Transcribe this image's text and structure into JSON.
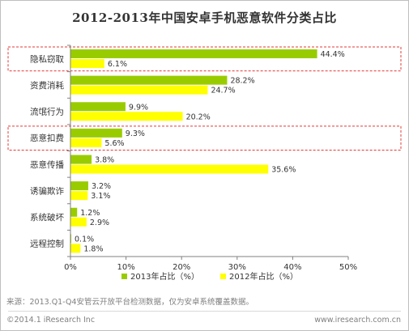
{
  "title": "2012-2013年中国安卓手机恶意软件分类占比",
  "colors": {
    "series_2013": "#99cc00",
    "series_2012": "#ffff00",
    "highlight_box": "#e53935",
    "axis": "#808080"
  },
  "chart_data": {
    "type": "bar",
    "orientation": "horizontal",
    "title": "2012-2013年中国安卓手机恶意软件分类占比",
    "categories": [
      "隐私窃取",
      "资费消耗",
      "流氓行为",
      "恶意扣费",
      "恶意传播",
      "诱骗欺诈",
      "系统破坏",
      "远程控制"
    ],
    "series": [
      {
        "name": "2013年占比（%）",
        "values": [
          44.4,
          28.2,
          9.9,
          9.3,
          3.8,
          3.2,
          1.2,
          0.1
        ],
        "labels": [
          "44.4%",
          "28.2%",
          "9.9%",
          "9.3%",
          "3.8%",
          "3.2%",
          "1.2%",
          "0.1%"
        ]
      },
      {
        "name": "2012年占比（%）",
        "values": [
          6.1,
          24.7,
          20.2,
          5.6,
          35.6,
          3.1,
          2.9,
          1.8
        ],
        "labels": [
          "6.1%",
          "24.7%",
          "20.2%",
          "5.6%",
          "35.6%",
          "3.1%",
          "2.9%",
          "1.8%"
        ]
      }
    ],
    "xlim": [
      0,
      50
    ],
    "xticks": [
      "0%",
      "10%",
      "20%",
      "30%",
      "40%",
      "50%"
    ],
    "highlighted_categories": [
      "隐私窃取",
      "恶意扣费"
    ],
    "legend_position": "bottom",
    "grid": false
  },
  "footer": {
    "source": "来源：2013.Q1-Q4安管云开放平台检测数据，仅为安卓系统覆盖数据。",
    "copyright": "©2014.1 iResearch Inc",
    "website": "www.iresearch.com.cn"
  }
}
